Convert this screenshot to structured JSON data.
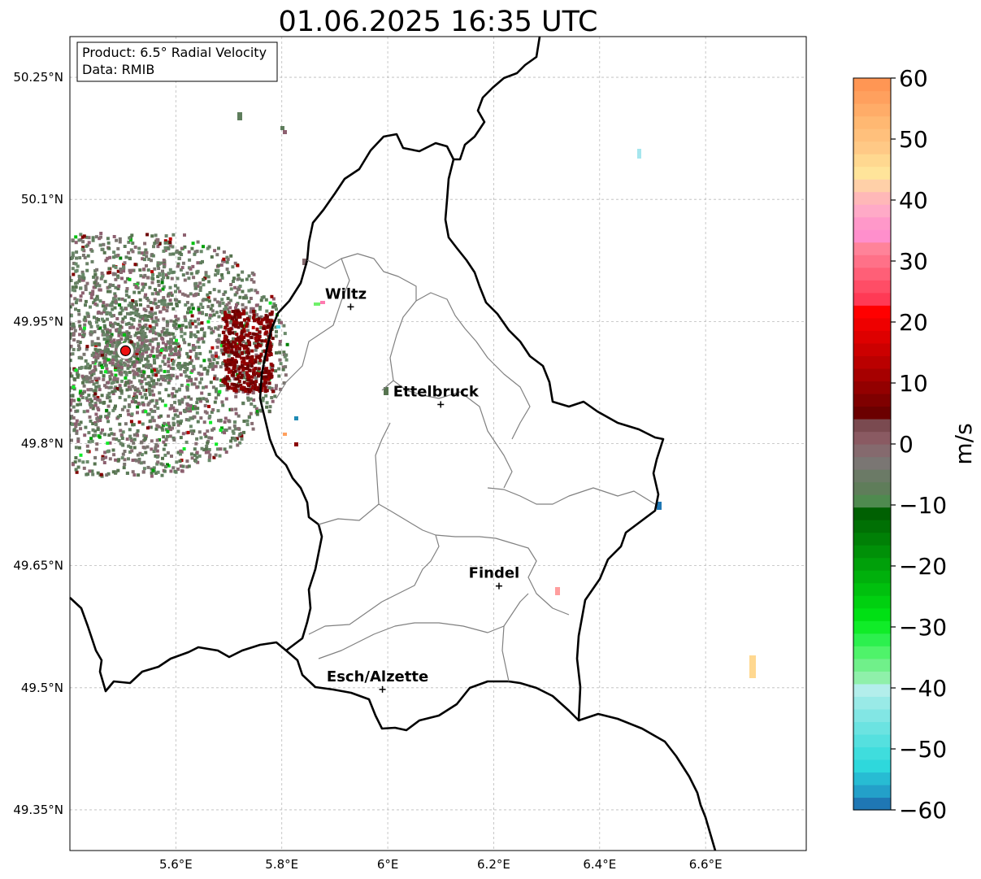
{
  "title": "01.06.2025 16:35 UTC",
  "info_box": {
    "product": "Product: 6.5° Radial Velocity",
    "data": "Data: RMIB"
  },
  "axes": {
    "lon_range": [
      5.4,
      6.79
    ],
    "lat_range": [
      49.3,
      50.3
    ],
    "x_ticks": [
      {
        "value": 5.6,
        "label": "5.6°E"
      },
      {
        "value": 5.8,
        "label": "5.8°E"
      },
      {
        "value": 6.0,
        "label": "6°E"
      },
      {
        "value": 6.2,
        "label": "6.2°E"
      },
      {
        "value": 6.4,
        "label": "6.4°E"
      },
      {
        "value": 6.6,
        "label": "6.6°E"
      }
    ],
    "y_ticks": [
      {
        "value": 50.25,
        "label": "50.25°N"
      },
      {
        "value": 50.1,
        "label": "50.1°N"
      },
      {
        "value": 49.95,
        "label": "49.95°N"
      },
      {
        "value": 49.8,
        "label": "49.8°N"
      },
      {
        "value": 49.65,
        "label": "49.65°N"
      },
      {
        "value": 49.5,
        "label": "49.5°N"
      },
      {
        "value": 49.35,
        "label": "49.35°N"
      }
    ],
    "grid": true
  },
  "cities": [
    {
      "name": "Wiltz",
      "lon": 5.93,
      "lat": 49.968
    },
    {
      "name": "Ettelbruck",
      "lon": 6.1,
      "lat": 49.848
    },
    {
      "name": "Findel",
      "lon": 6.21,
      "lat": 49.625
    },
    {
      "name": "Esch/Alzette",
      "lon": 5.99,
      "lat": 49.498
    }
  ],
  "radar": {
    "lon": 5.505,
    "lat": 49.914,
    "marker_color": "#ee1111"
  },
  "colorbar": {
    "label": "m/s",
    "min": -60,
    "max": 60,
    "ticks": [
      {
        "value": 60,
        "label": "60"
      },
      {
        "value": 50,
        "label": "50"
      },
      {
        "value": 40,
        "label": "40"
      },
      {
        "value": 30,
        "label": "30"
      },
      {
        "value": 20,
        "label": "20"
      },
      {
        "value": 10,
        "label": "10"
      },
      {
        "value": 0,
        "label": "0"
      },
      {
        "value": -10,
        "label": "−10"
      },
      {
        "value": -20,
        "label": "−20"
      },
      {
        "value": -30,
        "label": "−30"
      },
      {
        "value": -40,
        "label": "−40"
      },
      {
        "value": -50,
        "label": "−50"
      },
      {
        "value": -60,
        "label": "−60"
      }
    ],
    "colors_bottom_to_top": [
      "#1f77b4",
      "#23a0c9",
      "#27bcd3",
      "#2ed8dc",
      "#3fdddd",
      "#55e0df",
      "#6be3e1",
      "#82e6e4",
      "#99eae7",
      "#b3eeeb",
      "#8ff0aa",
      "#70f08a",
      "#4ff36a",
      "#2cf04e",
      "#10ec28",
      "#00e014",
      "#00d010",
      "#00c00e",
      "#00b00c",
      "#00a00a",
      "#009008",
      "#008006",
      "#007004",
      "#006002",
      "#4f8a4f",
      "#5f7d5a",
      "#6b7a66",
      "#7a7673",
      "#856a6e",
      "#8a5a62",
      "#7a4a50",
      "#6b0000",
      "#7f0000",
      "#930000",
      "#a60000",
      "#ba0000",
      "#cc0000",
      "#de0000",
      "#ee0000",
      "#ff0000",
      "#ff3a55",
      "#ff4d66",
      "#ff5f77",
      "#ff7188",
      "#ff8399",
      "#ff8fcc",
      "#ff98c9",
      "#ffaac7",
      "#ffb8b8",
      "#ffd0a8",
      "#ffe49a",
      "#ffd890",
      "#ffc986",
      "#ffc07c",
      "#ffb872",
      "#ffac68",
      "#ffa05e",
      "#ff9654"
    ]
  },
  "colors": {
    "country_border": "#000000",
    "canton_border": "#808080",
    "grid": "#bbbbbb"
  }
}
